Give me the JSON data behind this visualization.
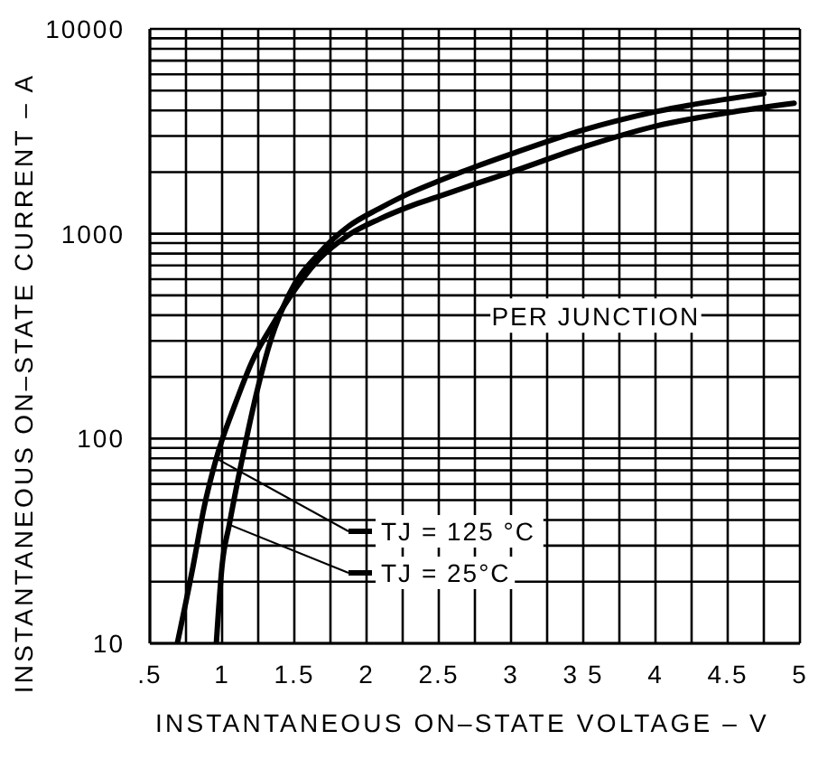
{
  "chart_data": {
    "type": "line",
    "xlabel": "INSTANTANEOUS ON–STATE VOLTAGE – V",
    "ylabel": "INSTANTANEOUS ON–STATE CURRENT – A",
    "log": "y",
    "grid": true,
    "legend": "bottom",
    "xlim": [
      0.5,
      5
    ],
    "xticks": [
      {
        "value": 0.5,
        "label": ".5"
      },
      {
        "value": 0.75,
        "label": null
      },
      1,
      {
        "value": 1.25,
        "label": null
      },
      1.5,
      {
        "value": 1.75,
        "label": null
      },
      2,
      {
        "value": 2.25,
        "label": null
      },
      2.5,
      {
        "value": 2.75,
        "label": null
      },
      3,
      {
        "value": 3.25,
        "label": null
      },
      {
        "value": 3.5,
        "label": "3 5"
      },
      {
        "value": 3.75,
        "label": null
      },
      4,
      {
        "value": 4.25,
        "label": null
      },
      4.5,
      {
        "value": 4.75,
        "label": null
      },
      5
    ],
    "ylim": [
      10,
      10000
    ],
    "yticks": [
      10,
      {
        "value": 20,
        "label": null
      },
      {
        "value": 30,
        "label": null
      },
      {
        "value": 40,
        "label": null
      },
      {
        "value": 50,
        "label": null
      },
      {
        "value": 60,
        "label": null
      },
      {
        "value": 70,
        "label": null
      },
      {
        "value": 80,
        "label": null
      },
      {
        "value": 90,
        "label": null
      },
      100,
      {
        "value": 200,
        "label": null
      },
      {
        "value": 300,
        "label": null
      },
      {
        "value": 400,
        "label": null
      },
      {
        "value": 500,
        "label": null
      },
      {
        "value": 600,
        "label": null
      },
      {
        "value": 700,
        "label": null
      },
      {
        "value": 800,
        "label": null
      },
      {
        "value": 900,
        "label": null
      },
      1000,
      {
        "value": 2000,
        "label": null
      },
      {
        "value": 3000,
        "label": null
      },
      {
        "value": 4000,
        "label": null
      },
      {
        "value": 5000,
        "label": null
      },
      {
        "value": 6000,
        "label": null
      },
      {
        "value": 7000,
        "label": null
      },
      {
        "value": 8000,
        "label": null
      },
      {
        "value": 9000,
        "label": null
      },
      10000
    ],
    "series": [
      {
        "name": "TJ = 125 °C",
        "color": "#000000",
        "x": [
          0.69,
          0.8,
          0.875,
          0.96,
          1.09,
          1.21,
          1.34,
          1.46,
          1.67,
          1.87,
          2.09,
          2.3,
          2.5,
          2.75,
          3.0,
          3.5,
          4.0,
          4.5,
          4.96
        ],
        "values": [
          10,
          24,
          46,
          80,
          147,
          240,
          350,
          480,
          750,
          980,
          1180,
          1360,
          1520,
          1750,
          2000,
          2650,
          3350,
          3900,
          4340
        ]
      },
      {
        "name": "TJ = 25°C",
        "color": "#000000",
        "x": [
          0.96,
          1.0,
          1.05,
          1.13,
          1.25,
          1.34,
          1.46,
          1.67,
          1.87,
          2.09,
          2.3,
          2.5,
          2.75,
          3.0,
          3.5,
          4.0,
          4.75
        ],
        "values": [
          10,
          24,
          38,
          74,
          180,
          307,
          500,
          800,
          1080,
          1330,
          1580,
          1810,
          2120,
          2450,
          3210,
          3940,
          4830
        ]
      }
    ],
    "annotations": [
      "PER JUNCTION"
    ]
  }
}
